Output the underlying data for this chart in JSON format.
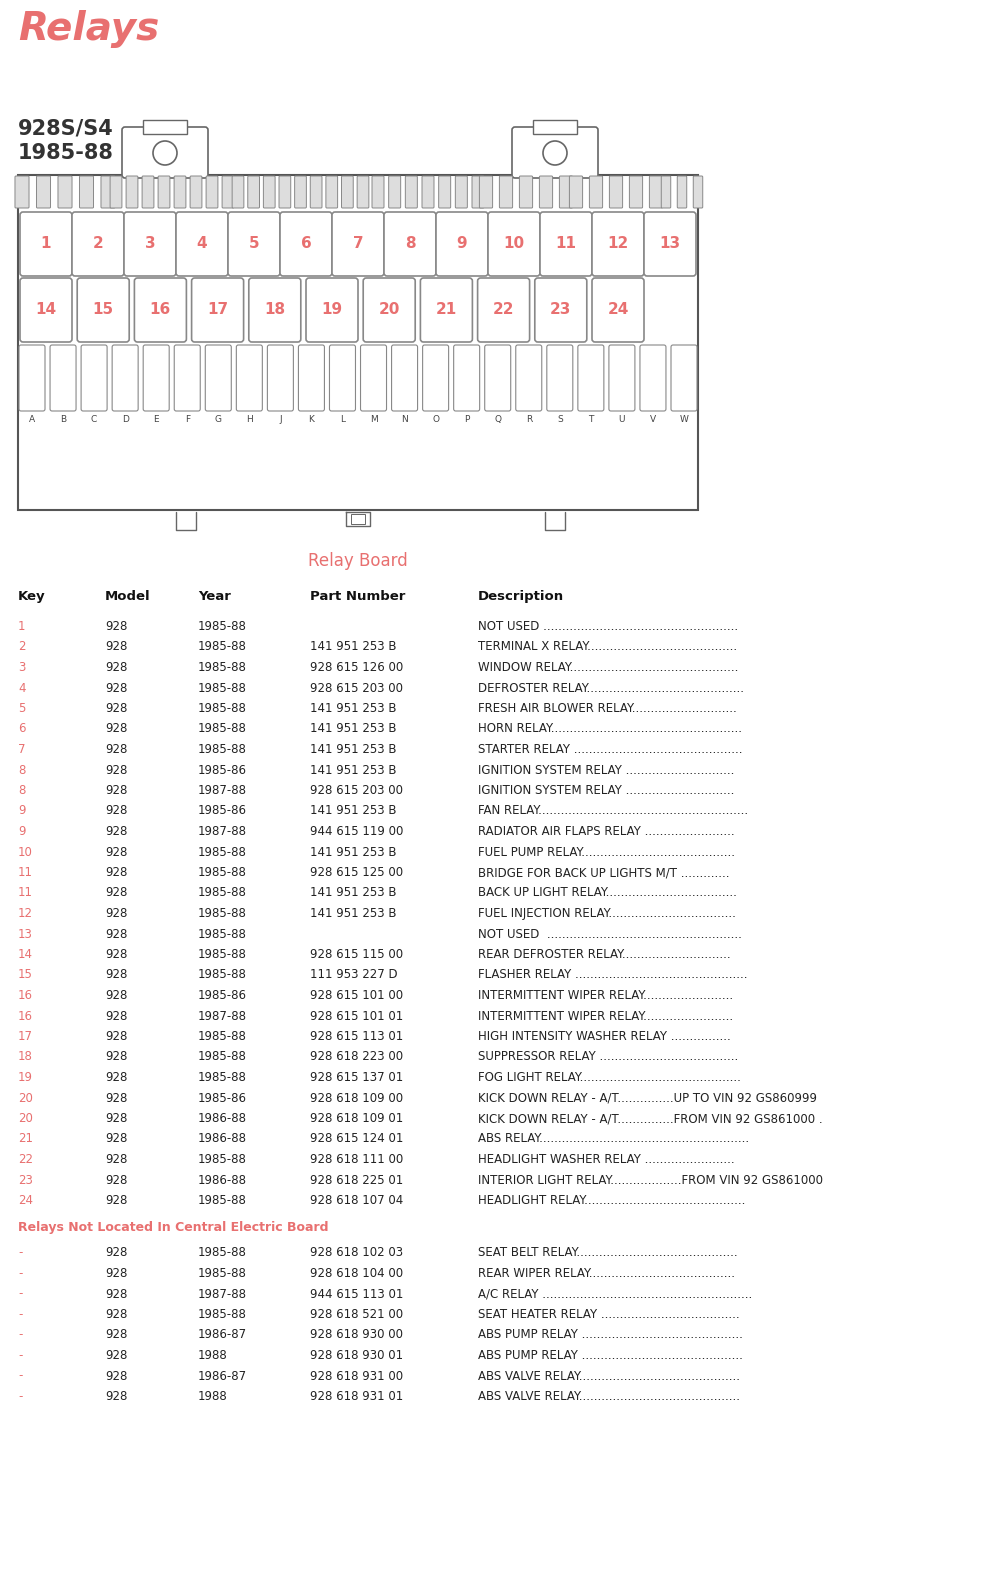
{
  "title": "Relays",
  "subtitle1": "928S/S4",
  "subtitle2": "1985-88",
  "relay_board_title": "Relay Board",
  "title_color": "#E87070",
  "subtitle_color": "#444444",
  "relay_board_color": "#E87070",
  "bg_color": "#FFFFFF",
  "table_header": [
    "Key",
    "Model",
    "Year",
    "Part Number",
    "Description"
  ],
  "rows": [
    [
      "1",
      "928",
      "1985-88",
      "",
      "NOT USED ...................................................."
    ],
    [
      "2",
      "928",
      "1985-88",
      "141 951 253 B",
      "TERMINAL X RELAY........................................"
    ],
    [
      "3",
      "928",
      "1985-88",
      "928 615 126 00",
      "WINDOW RELAY............................................."
    ],
    [
      "4",
      "928",
      "1985-88",
      "928 615 203 00",
      "DEFROSTER RELAY.........................................."
    ],
    [
      "5",
      "928",
      "1985-88",
      "141 951 253 B",
      "FRESH AIR BLOWER RELAY............................"
    ],
    [
      "6",
      "928",
      "1985-88",
      "141 951 253 B",
      "HORN RELAY..................................................."
    ],
    [
      "7",
      "928",
      "1985-88",
      "141 951 253 B",
      "STARTER RELAY ............................................."
    ],
    [
      "8",
      "928",
      "1985-86",
      "141 951 253 B",
      "IGNITION SYSTEM RELAY ............................."
    ],
    [
      "8",
      "928",
      "1987-88",
      "928 615 203 00",
      "IGNITION SYSTEM RELAY ............................."
    ],
    [
      "9",
      "928",
      "1985-86",
      "141 951 253 B",
      "FAN RELAY........................................................"
    ],
    [
      "9",
      "928",
      "1987-88",
      "944 615 119 00",
      "RADIATOR AIR FLAPS RELAY ........................"
    ],
    [
      "10",
      "928",
      "1985-88",
      "141 951 253 B",
      "FUEL PUMP RELAY........................................."
    ],
    [
      "11",
      "928",
      "1985-88",
      "928 615 125 00",
      "BRIDGE FOR BACK UP LIGHTS M/T ............."
    ],
    [
      "11",
      "928",
      "1985-88",
      "141 951 253 B",
      "BACK UP LIGHT RELAY..................................."
    ],
    [
      "12",
      "928",
      "1985-88",
      "141 951 253 B",
      "FUEL INJECTION RELAY.................................."
    ],
    [
      "13",
      "928",
      "1985-88",
      "",
      "NOT USED  ...................................................."
    ],
    [
      "14",
      "928",
      "1985-88",
      "928 615 115 00",
      "REAR DEFROSTER RELAY............................."
    ],
    [
      "15",
      "928",
      "1985-88",
      "111 953 227 D",
      "FLASHER RELAY .............................................."
    ],
    [
      "16",
      "928",
      "1985-86",
      "928 615 101 00",
      "INTERMITTENT WIPER RELAY........................"
    ],
    [
      "16",
      "928",
      "1987-88",
      "928 615 101 01",
      "INTERMITTENT WIPER RELAY........................"
    ],
    [
      "17",
      "928",
      "1985-88",
      "928 615 113 01",
      "HIGH INTENSITY WASHER RELAY ................"
    ],
    [
      "18",
      "928",
      "1985-88",
      "928 618 223 00",
      "SUPPRESSOR RELAY ....................................."
    ],
    [
      "19",
      "928",
      "1985-88",
      "928 615 137 01",
      "FOG LIGHT RELAY..........................................."
    ],
    [
      "20",
      "928",
      "1985-86",
      "928 618 109 00",
      "KICK DOWN RELAY - A/T...............UP TO VIN 92 GS860999"
    ],
    [
      "20",
      "928",
      "1986-88",
      "928 618 109 01",
      "KICK DOWN RELAY - A/T...............FROM VIN 92 GS861000 ."
    ],
    [
      "21",
      "928",
      "1986-88",
      "928 615 124 01",
      "ABS RELAY........................................................"
    ],
    [
      "22",
      "928",
      "1985-88",
      "928 618 111 00",
      "HEADLIGHT WASHER RELAY ........................"
    ],
    [
      "23",
      "928",
      "1986-88",
      "928 618 225 01",
      "INTERIOR LIGHT RELAY...................FROM VIN 92 GS861000"
    ],
    [
      "24",
      "928",
      "1985-88",
      "928 618 107 04",
      "HEADLIGHT RELAY..........................................."
    ]
  ],
  "section2_header": "Relays Not Located In Central Electric Board",
  "rows2": [
    [
      "-",
      "928",
      "1985-88",
      "928 618 102 03",
      "SEAT BELT RELAY..........................................."
    ],
    [
      "-",
      "928",
      "1985-88",
      "928 618 104 00",
      "REAR WIPER RELAY......................................."
    ],
    [
      "-",
      "928",
      "1987-88",
      "944 615 113 01",
      "A/C RELAY ........................................................"
    ],
    [
      "-",
      "928",
      "1985-88",
      "928 618 521 00",
      "SEAT HEATER RELAY ....................................."
    ],
    [
      "-",
      "928",
      "1986-87",
      "928 618 930 00",
      "ABS PUMP RELAY ..........................................."
    ],
    [
      "-",
      "928",
      "1988",
      "928 618 930 01",
      "ABS PUMP RELAY ..........................................."
    ],
    [
      "-",
      "928",
      "1986-87",
      "928 618 931 00",
      "ABS VALVE RELAY..........................................."
    ],
    [
      "-",
      "928",
      "1988",
      "928 618 931 01",
      "ABS VALVE RELAY..........................................."
    ]
  ],
  "relay_numbers_row1": [
    "1",
    "2",
    "3",
    "4",
    "5",
    "6",
    "7",
    "8",
    "9",
    "10",
    "11",
    "12",
    "13"
  ],
  "relay_numbers_row2": [
    "14",
    "15",
    "16",
    "17",
    "18",
    "19",
    "20",
    "21",
    "22",
    "23",
    "24"
  ],
  "relay_letters": [
    "A",
    "B",
    "C",
    "D",
    "E",
    "F",
    "G",
    "H",
    "J",
    "K",
    "L",
    "M",
    "N",
    "O",
    "P",
    "Q",
    "R",
    "S",
    "T",
    "U",
    "V",
    "W"
  ]
}
